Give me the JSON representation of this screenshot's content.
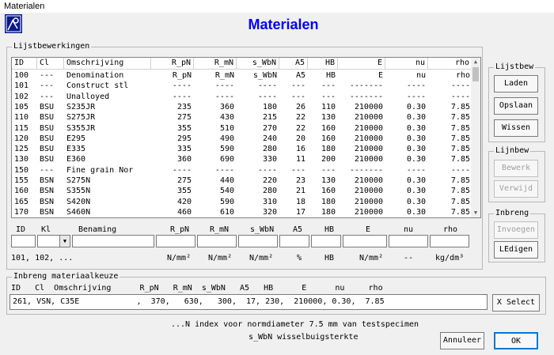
{
  "window": {
    "title": "Materialen"
  },
  "app": {
    "heading": "Materialen"
  },
  "list_group": {
    "title": "Lijstbewerkingen",
    "columns": [
      "ID",
      "Cl",
      "Omschrijving",
      "R_pN",
      "R_mN",
      "s_WbN",
      "A5",
      "HB",
      "E",
      "nu",
      "rho"
    ],
    "rows": [
      [
        "100",
        "---",
        "Denomination",
        "R_pN",
        "R_mN",
        "s_WbN",
        "A5",
        "HB",
        "E",
        "nu",
        "rho"
      ],
      [
        "101",
        "---",
        "Construct stl",
        "----",
        "----",
        "----",
        "---",
        "---",
        "-------",
        "----",
        "----"
      ],
      [
        "102",
        "---",
        "Unalloyed",
        "----",
        "----",
        "----",
        "---",
        "---",
        "-------",
        "----",
        "----"
      ],
      [
        "105",
        "BSU",
        "S235JR",
        "235",
        "360",
        "180",
        "26",
        "110",
        "210000",
        "0.30",
        "7.85"
      ],
      [
        "110",
        "BSU",
        "S275JR",
        "275",
        "430",
        "215",
        "22",
        "130",
        "210000",
        "0.30",
        "7.85"
      ],
      [
        "115",
        "BSU",
        "S355JR",
        "355",
        "510",
        "270",
        "22",
        "160",
        "210000",
        "0.30",
        "7.85"
      ],
      [
        "120",
        "BSU",
        "E295",
        "295",
        "490",
        "240",
        "20",
        "160",
        "210000",
        "0.30",
        "7.85"
      ],
      [
        "125",
        "BSU",
        "E335",
        "335",
        "590",
        "280",
        "16",
        "180",
        "210000",
        "0.30",
        "7.85"
      ],
      [
        "130",
        "BSU",
        "E360",
        "360",
        "690",
        "330",
        "11",
        "200",
        "210000",
        "0.30",
        "7.85"
      ],
      [
        "150",
        "---",
        "Fine grain Nor",
        "----",
        "----",
        "----",
        "---",
        "---",
        "-------",
        "----",
        "----"
      ],
      [
        "155",
        "BSN",
        "S275N",
        "275",
        "440",
        "220",
        "23",
        "130",
        "210000",
        "0.30",
        "7.85"
      ],
      [
        "160",
        "BSN",
        "S355N",
        "355",
        "540",
        "280",
        "21",
        "160",
        "210000",
        "0.30",
        "7.85"
      ],
      [
        "165",
        "BSN",
        "S420N",
        "420",
        "590",
        "310",
        "18",
        "180",
        "210000",
        "0.30",
        "7.85"
      ],
      [
        "170",
        "BSN",
        "S460N",
        "460",
        "610",
        "320",
        "17",
        "180",
        "210000",
        "0.30",
        "7.85"
      ]
    ]
  },
  "edit_row": {
    "headers": [
      "ID",
      "Kl",
      "Benaming",
      "R_pN",
      "R_mN",
      "s_WbN",
      "A5",
      "HB",
      "E",
      "nu",
      "rho"
    ],
    "units": [
      "101, 102, ...",
      "N/mm²",
      "N/mm²",
      "N/mm²",
      "%",
      "HB",
      "N/mm²",
      "--",
      "kg/dm³"
    ]
  },
  "side": {
    "lijstbew": {
      "title": "Lijstbew",
      "laden": "Laden",
      "opslaan": "Opslaan",
      "wissen": "Wissen"
    },
    "lijnbew": {
      "title": "Lijnbew",
      "bewerk": "Bewerk",
      "verwijd": "Verwijd"
    },
    "inbreng": {
      "title": "Inbreng",
      "invoegen": "Invoegen",
      "ledigen": "LEdigen"
    }
  },
  "input_group": {
    "title": "Inbreng materiaalkeuze",
    "header": "ID   Cl  Omschrijving      R_pN   R_mN  s_WbN   A5   HB      E      nu     rho",
    "value": "261, VSN, C35E            ,  370,   630,   300,  17, 230,  210000, 0.30,  7.85",
    "select": "X Select"
  },
  "notes": {
    "line1": "...N index voor normdiameter 7.5 mm van testspecimen",
    "line2": "s_WbN wisselbuigsterkte"
  },
  "footer": {
    "cancel": "Annuleer",
    "ok": "OK"
  },
  "colors": {
    "heading": "#0000ff",
    "logo": "#0a1a8c"
  }
}
